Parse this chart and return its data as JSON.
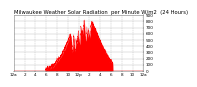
{
  "title": "Milwaukee Weather Solar Radiation  per Minute W/m2  (24 Hours)",
  "title_fontsize": 3.8,
  "bg_color": "#ffffff",
  "plot_bg_color": "#ffffff",
  "grid_color": "#bbbbbb",
  "bar_color": "#ff0000",
  "n_points": 1440,
  "peak_value": 900,
  "peak_minute": 780,
  "sigma": 160,
  "ylim": [
    0,
    900
  ],
  "xlim": [
    0,
    1440
  ],
  "ytick_values": [
    0,
    100,
    200,
    300,
    400,
    500,
    600,
    700,
    800,
    900
  ],
  "xtick_positions": [
    0,
    120,
    240,
    360,
    480,
    600,
    720,
    840,
    960,
    1080,
    1200,
    1320,
    1440
  ],
  "xtick_labels": [
    "12a",
    "2",
    "4",
    "6",
    "8",
    "10",
    "12p",
    "2",
    "4",
    "6",
    "8",
    "10",
    "12a"
  ],
  "tick_fontsize": 3.0
}
